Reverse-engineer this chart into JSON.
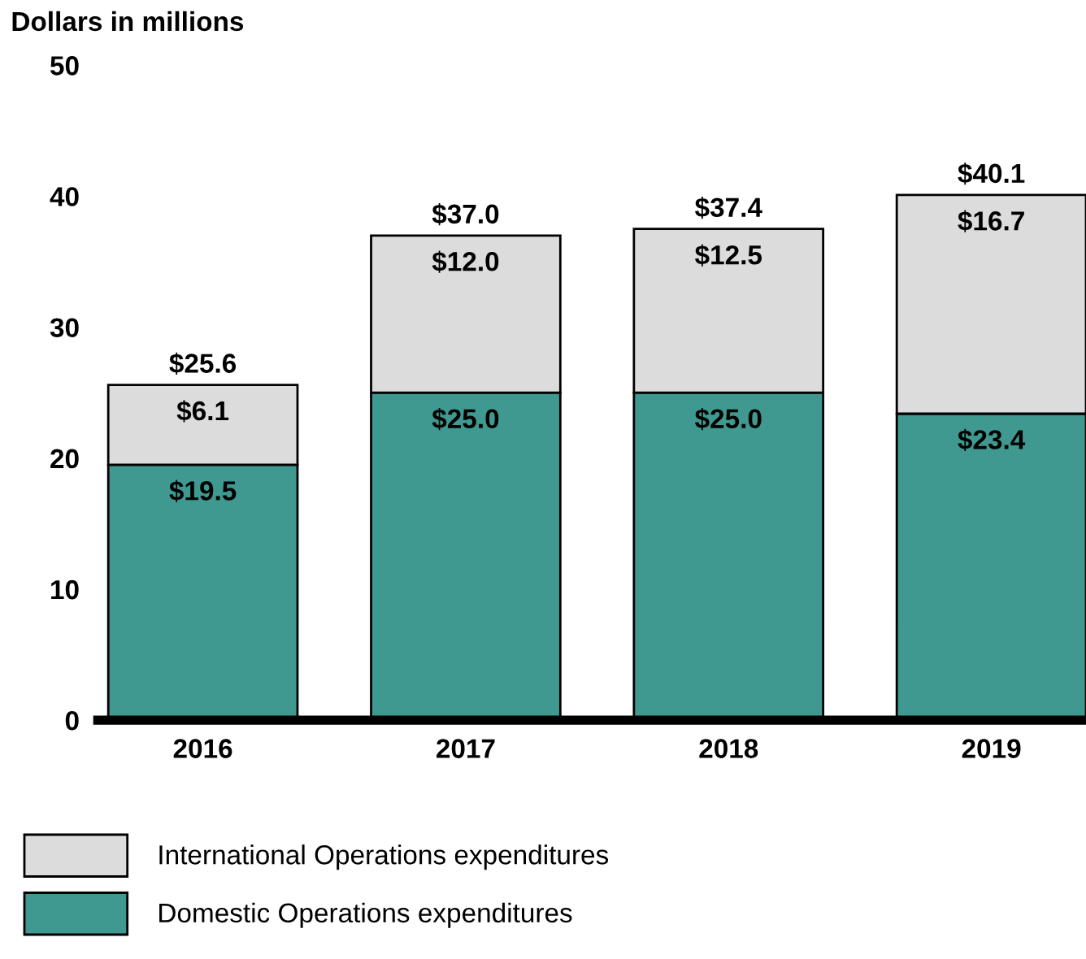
{
  "chart_data": {
    "type": "bar",
    "stacked": true,
    "ylabel": "Dollars in millions",
    "categories": [
      "2016",
      "2017",
      "2018",
      "2019"
    ],
    "series": [
      {
        "name": "Domestic Operations expenditures",
        "color": "#3f9990",
        "values": [
          19.5,
          25.0,
          25.0,
          23.4
        ],
        "value_labels": [
          "$19.5",
          "$25.0",
          "$25.0",
          "$23.4"
        ]
      },
      {
        "name": "International Operations expenditures",
        "color": "#dcdcdc",
        "values": [
          6.1,
          12.0,
          12.5,
          16.7
        ],
        "value_labels": [
          "$6.1",
          "$12.0",
          "$12.5",
          "$16.7"
        ]
      }
    ],
    "totals": [
      "$25.6",
      "$37.0",
      "$37.4",
      "$40.1"
    ],
    "ylim": [
      0,
      50
    ],
    "yticks": [
      0,
      10,
      20,
      30,
      40,
      50
    ],
    "grid": false,
    "legend": "bottom left"
  }
}
